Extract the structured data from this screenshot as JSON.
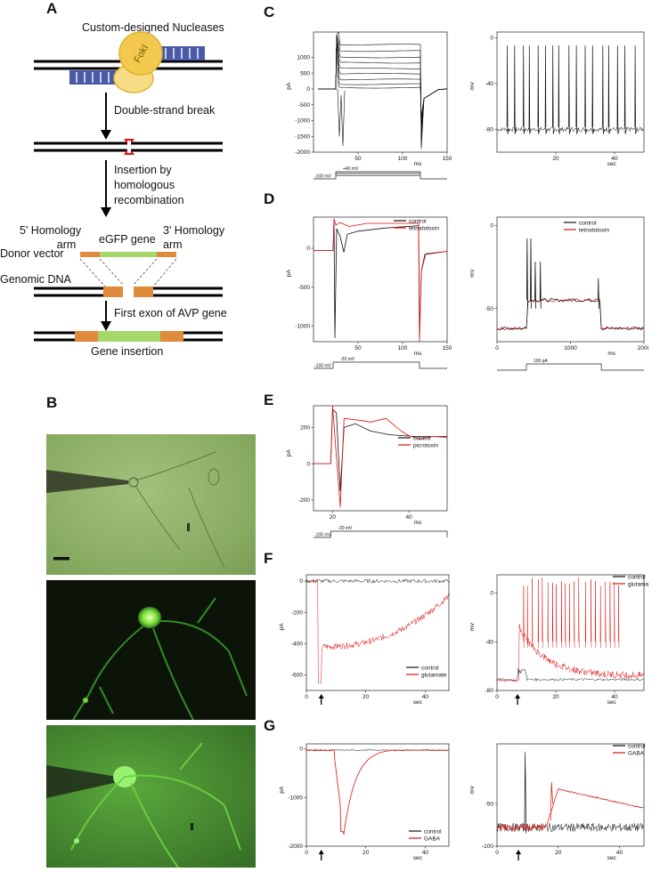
{
  "panels": {
    "A": "A",
    "B": "B",
    "C": "C",
    "D": "D",
    "E": "E",
    "F": "F",
    "G": "G"
  },
  "schematic": {
    "nucleases_label": "Custom-designed Nucleases",
    "enzyme_label": "FokI",
    "step1": "Double-strand break",
    "step2": [
      "Insertion by",
      "homologous",
      "recombination"
    ],
    "homology5": [
      "5' Homology",
      "arm"
    ],
    "egfp": "eGFP gene",
    "homology3": [
      "3' Homology",
      "arm"
    ],
    "donor": "Donor vector",
    "genomic": "Genomic DNA",
    "exon": "First exon of  AVP gene",
    "insertion": "Gene insertion"
  },
  "colors": {
    "trace_control": "#111111",
    "trace_drug": "#e01010",
    "fluor_green": "#2fd03a",
    "bright_green": "#8fb86a",
    "homology": "#e08a3c",
    "egfp_bar": "#a5d86b",
    "nuclease_blue": "#4a5aa8",
    "foki": "#f2c94c"
  },
  "chart_data": [
    {
      "id": "C-left",
      "type": "line",
      "description_type": "voltage-clamp current family",
      "ylabel": "pA",
      "xlabel": "ms",
      "xticks": [
        "50",
        "100",
        "150"
      ],
      "yticks": [
        "1000",
        "500",
        "0",
        "-500",
        "-1000",
        "-1500",
        "-2000"
      ],
      "xlim": [
        0,
        150
      ],
      "ylim": [
        -2000,
        1800
      ],
      "step_levels_pA": [
        1400,
        1200,
        1000,
        830,
        650,
        480,
        300,
        150,
        40
      ],
      "protocol": {
        "hold": "-100 mV",
        "top": "+40 mV"
      }
    },
    {
      "id": "C-right",
      "type": "line",
      "description_type": "current-clamp spontaneous firing",
      "ylabel": "mV",
      "xlabel": "sec",
      "xticks": [
        "20",
        "40"
      ],
      "yticks": [
        "0",
        "-40",
        "-80"
      ],
      "xlim": [
        0,
        50
      ],
      "ylim": [
        -100,
        5
      ],
      "baseline_mV": -80,
      "spike_peak_mV": -7,
      "spike_times_sec": [
        3.5,
        6,
        9,
        11,
        14,
        16.5,
        19,
        21,
        24.5,
        27,
        30,
        32.5,
        36,
        38,
        41,
        43.5,
        47
      ]
    },
    {
      "id": "D-left",
      "type": "line",
      "ylabel": "pA",
      "xlabel": "ms",
      "xticks": [
        "50",
        "100",
        "150"
      ],
      "yticks": [
        "0",
        "-500",
        "-1000"
      ],
      "xlim": [
        0,
        150
      ],
      "ylim": [
        -1200,
        400
      ],
      "series": [
        {
          "name": "control",
          "color": "#111111"
        },
        {
          "name": "tetrodotoxin",
          "color": "#e01010"
        }
      ],
      "protocol": {
        "hold": "-100 mV",
        "top": "-20 mV"
      }
    },
    {
      "id": "D-right",
      "type": "line",
      "ylabel": "mV",
      "xlabel": "ms",
      "xticks": [
        "0",
        "1000",
        "2000"
      ],
      "yticks": [
        "0",
        "-50"
      ],
      "xlim": [
        0,
        2000
      ],
      "ylim": [
        -70,
        5
      ],
      "series": [
        {
          "name": "control",
          "color": "#111111"
        },
        {
          "name": "tetrodotoxin",
          "color": "#e01010"
        }
      ],
      "protocol": {
        "top": "100 pA"
      }
    },
    {
      "id": "E",
      "type": "line",
      "ylabel": "pA",
      "xlabel": "ms",
      "xticks": [
        "20",
        "40"
      ],
      "yticks": [
        "200",
        "0",
        "-200"
      ],
      "xlim": [
        15,
        50
      ],
      "ylim": [
        -260,
        320
      ],
      "series": [
        {
          "name": "control",
          "color": "#111111"
        },
        {
          "name": "picrotoxin",
          "color": "#e01010"
        }
      ],
      "protocol": {
        "hold": "-100 mV",
        "top": "-20 mV"
      }
    },
    {
      "id": "F-left",
      "type": "line",
      "ylabel": "pA",
      "xlabel": "sec",
      "xticks": [
        "0",
        "20",
        "40"
      ],
      "yticks": [
        "0",
        "-200",
        "-400",
        "-600"
      ],
      "xlim": [
        0,
        48
      ],
      "ylim": [
        -700,
        40
      ],
      "series": [
        {
          "name": "control",
          "color": "#111111"
        },
        {
          "name": "glutamate",
          "color": "#e01010"
        }
      ],
      "stimulus_sec": 5
    },
    {
      "id": "F-right",
      "type": "line",
      "ylabel": "mV",
      "xlabel": "sec",
      "xticks": [
        "0",
        "20",
        "40"
      ],
      "yticks": [
        "0",
        "-40",
        "-80"
      ],
      "xlim": [
        0,
        50
      ],
      "ylim": [
        -80,
        15
      ],
      "series": [
        {
          "name": "control",
          "color": "#111111"
        },
        {
          "name": "glutamate",
          "color": "#e01010"
        }
      ],
      "stimulus_sec": 7
    },
    {
      "id": "G-left",
      "type": "line",
      "ylabel": "pA",
      "xlabel": "sec",
      "xticks": [
        "0",
        "20",
        "40"
      ],
      "yticks": [
        "0",
        "-1000",
        "-2000"
      ],
      "xlim": [
        0,
        48
      ],
      "ylim": [
        -2000,
        100
      ],
      "series": [
        {
          "name": "control",
          "color": "#111111"
        },
        {
          "name": "GABA",
          "color": "#e01010"
        }
      ],
      "stimulus_sec": 5
    },
    {
      "id": "G-right",
      "type": "line",
      "ylabel": "mV",
      "xlabel": "sec",
      "xticks": [
        "0",
        "20",
        "40"
      ],
      "yticks": [
        "-50",
        "-100"
      ],
      "xlim": [
        0,
        48
      ],
      "ylim": [
        -100,
        20
      ],
      "series": [
        {
          "name": "control",
          "color": "#111111"
        },
        {
          "name": "GABA",
          "color": "#e01010"
        }
      ],
      "stimulus_sec": 7
    }
  ]
}
